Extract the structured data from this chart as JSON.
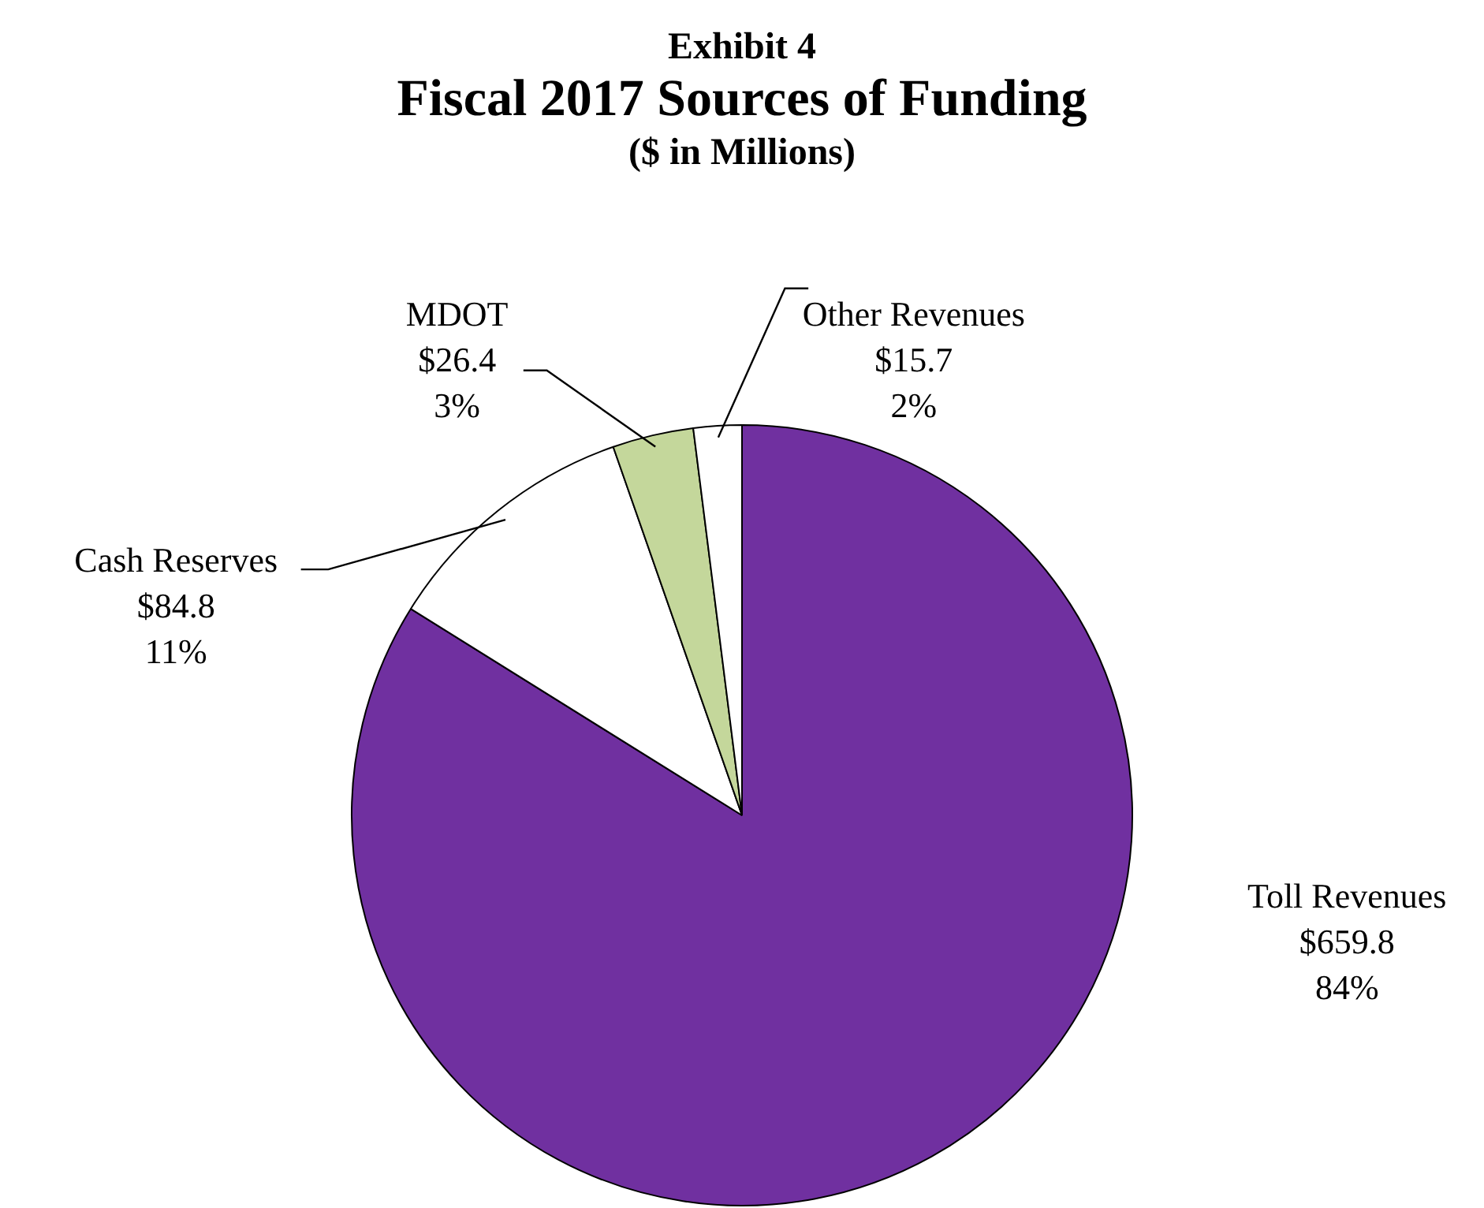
{
  "chart_data": {
    "type": "pie",
    "title": "Fiscal 2017 Sources of Funding",
    "subtitle": "($ in Millions)",
    "annotations": [
      "Exhibit 4"
    ],
    "categories": [
      "Toll Revenues",
      "Cash Reserves",
      "MDOT",
      "Other Revenues"
    ],
    "values": [
      659.8,
      84.8,
      26.4,
      15.7
    ],
    "value_labels": [
      "$659.8\n84%",
      "$84.8\n11%",
      "$26.4\n3%",
      "$15.7\n2%"
    ],
    "colors": [
      "#7030a0",
      "#ffffff",
      "#c4d79b",
      "#ffffff"
    ],
    "legend": false
  }
}
